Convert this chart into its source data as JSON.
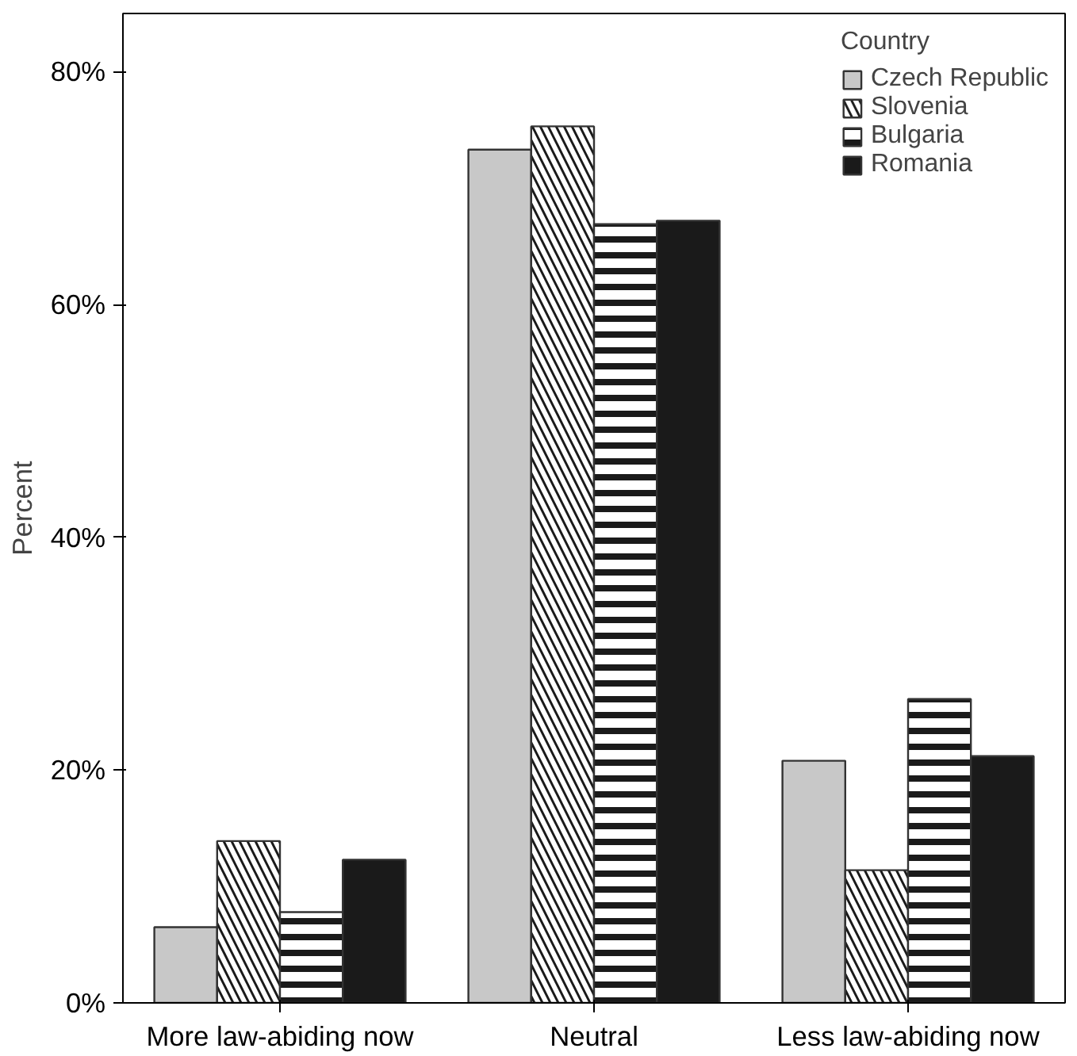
{
  "chart_data": {
    "type": "bar",
    "ylabel": "Percent",
    "legend_title": "Country",
    "categories": [
      "More law-abiding now",
      "Neutral",
      "Less law-abiding now"
    ],
    "series": [
      {
        "name": "Czech Republic",
        "color": "#c8c8c8",
        "values": [
          6.5,
          73.3,
          20.8
        ]
      },
      {
        "name": "Slovenia",
        "color": "#1a1a1a",
        "values": [
          13.9,
          75.3,
          11.4
        ]
      },
      {
        "name": "Bulgaria",
        "color": "#1a1a1a",
        "values": [
          7.8,
          66.9,
          26.1
        ]
      },
      {
        "name": "Romania",
        "color": "#1a1a1a",
        "values": [
          12.3,
          67.2,
          21.2
        ]
      }
    ],
    "ylim": [
      0,
      85
    ],
    "yticks": [
      {
        "value": 0,
        "label": "0%"
      },
      {
        "value": 20,
        "label": "20%"
      },
      {
        "value": 40,
        "label": "40%"
      },
      {
        "value": 60,
        "label": "60%"
      },
      {
        "value": 80,
        "label": "80%"
      }
    ],
    "grid": false,
    "legend": "top right"
  }
}
